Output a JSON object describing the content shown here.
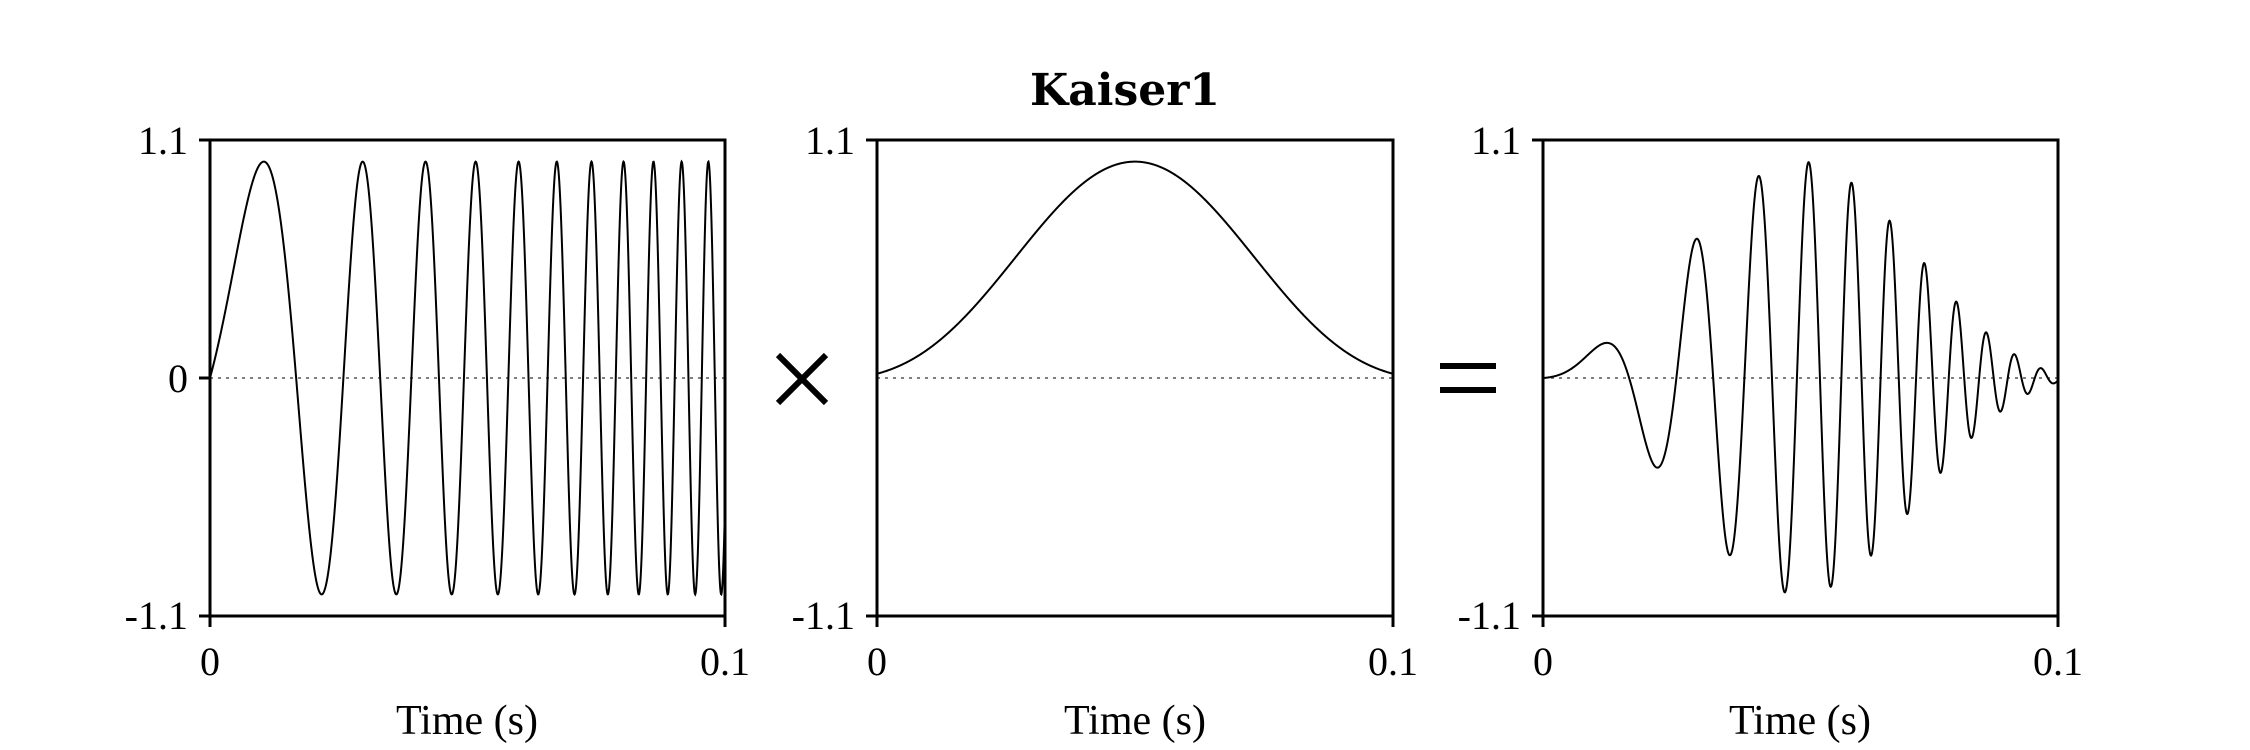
{
  "title": "Kaiser1",
  "chart_data": [
    {
      "type": "line",
      "name": "chirp",
      "xlabel": "Time (s)",
      "xlim": [
        0,
        0.1
      ],
      "ylim": [
        -1.1,
        1.1
      ],
      "x_ticks": [
        "0",
        "0.1"
      ],
      "y_ticks": [
        "1.1",
        "0",
        "-1.1"
      ],
      "signal": {
        "kind": "chirp",
        "amplitude": 1.0,
        "f0_hz": 0,
        "f1_hz": 200,
        "duration_s": 0.1
      },
      "grid": false
    },
    {
      "type": "line",
      "name": "window",
      "xlabel": "Time (s)",
      "xlim": [
        0,
        0.1
      ],
      "ylim": [
        -1.1,
        1.1
      ],
      "x_ticks": [
        "0",
        "0.1"
      ],
      "y_ticks": [
        "1.1",
        "0"
      ],
      "extra_y_tick": "-1.1",
      "signal": {
        "kind": "kaiser",
        "beta": 5.7,
        "peak": 1.0,
        "duration_s": 0.1
      },
      "grid": false
    },
    {
      "type": "line",
      "name": "product",
      "xlabel": "Time (s)",
      "xlim": [
        0,
        0.1
      ],
      "ylim": [
        -1.1,
        1.1
      ],
      "x_ticks": [
        "0",
        "0.1"
      ],
      "y_ticks": [
        "1.1",
        "-1.1"
      ],
      "signal": {
        "kind": "chirp_times_window",
        "f0_hz": 0,
        "f1_hz": 200,
        "duration_s": 0.1
      },
      "grid": false
    }
  ],
  "operators": [
    "×",
    "="
  ]
}
